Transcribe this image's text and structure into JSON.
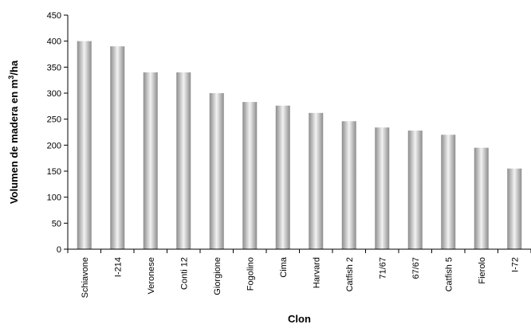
{
  "chart_data": {
    "type": "bar",
    "categories": [
      "Schiavone",
      "I-214",
      "Veronese",
      "Conti 12",
      "Giorgione",
      "Fogolino",
      "Cima",
      "Harvard",
      "Catfish 2",
      "71/67",
      "67/67",
      "Catfish 5",
      "Fierolo",
      "I-72"
    ],
    "series": [
      {
        "values": [
          400,
          390,
          340,
          340,
          300,
          283,
          276,
          262,
          246,
          234,
          228,
          220,
          195,
          155
        ]
      }
    ],
    "xlabel": "Clon",
    "ylabel_main": "Volumen de madera en m",
    "ylabel_sup": "3",
    "ylabel_tail": "/ha",
    "ylim": [
      0,
      450
    ],
    "yticks": [
      "0",
      "50",
      "100",
      "150",
      "200",
      "250",
      "300",
      "350",
      "400",
      "450"
    ],
    "ytick_values": [
      0,
      50,
      100,
      150,
      200,
      250,
      300,
      350,
      400,
      450
    ],
    "grid": false,
    "bar_colors": {
      "edge": "#8c8c8c",
      "highlight": "#f2f2f2"
    }
  }
}
